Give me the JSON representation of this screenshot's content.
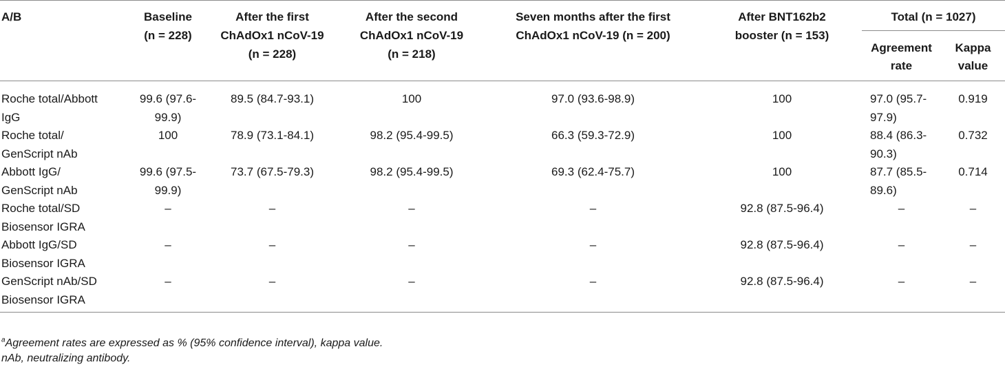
{
  "table": {
    "header": {
      "ab": "A/B",
      "baseline": {
        "line1": "Baseline",
        "line2": "(n = 228)"
      },
      "first": {
        "line1": "After the first",
        "line2": "ChAdOx1 nCoV-19",
        "line3": "(n = 228)"
      },
      "second": {
        "line1": "After the second",
        "line2": "ChAdOx1 nCoV-19",
        "line3": "(n = 218)"
      },
      "seven": {
        "line1": "Seven months after the first",
        "line2": "ChAdOx1 nCoV-19 (n = 200)"
      },
      "booster": {
        "line1": "After BNT162b2",
        "line2": "booster (n = 153)"
      },
      "total": "Total (n = 1027)",
      "agreement": {
        "line1": "Agreement",
        "line2": "rate"
      },
      "kappa": {
        "line1": "Kappa",
        "line2": "value"
      }
    },
    "rows": [
      {
        "label": [
          "Roche total/Abbott",
          "IgG"
        ],
        "baseline": [
          "99.6 (97.6-",
          "99.9)"
        ],
        "first": "89.5 (84.7-93.1)",
        "second": "100",
        "seven": "97.0 (93.6-98.9)",
        "booster": "100",
        "agreement": [
          "97.0 (95.7-",
          "97.9)"
        ],
        "kappa": "0.919"
      },
      {
        "label": [
          "Roche total/",
          "GenScript nAb"
        ],
        "baseline": [
          "100",
          ""
        ],
        "first": "78.9 (73.1-84.1)",
        "second": "98.2 (95.4-99.5)",
        "seven": "66.3 (59.3-72.9)",
        "booster": "100",
        "agreement": [
          "88.4 (86.3-",
          "90.3)"
        ],
        "kappa": "0.732"
      },
      {
        "label": [
          "Abbott IgG/",
          "GenScript nAb"
        ],
        "baseline": [
          "99.6 (97.5-",
          "99.9)"
        ],
        "first": "73.7 (67.5-79.3)",
        "second": "98.2 (95.4-99.5)",
        "seven": "69.3 (62.4-75.7)",
        "booster": "100",
        "agreement": [
          "87.7 (85.5-",
          "89.6)"
        ],
        "kappa": "0.714"
      },
      {
        "label": [
          "Roche total/SD",
          "Biosensor IGRA"
        ],
        "baseline": [
          "–",
          ""
        ],
        "first": "–",
        "second": "–",
        "seven": "–",
        "booster": "92.8 (87.5-96.4)",
        "agreement": [
          "–",
          ""
        ],
        "kappa": "–"
      },
      {
        "label": [
          "Abbott IgG/SD",
          "Biosensor IGRA"
        ],
        "baseline": [
          "–",
          ""
        ],
        "first": "–",
        "second": "–",
        "seven": "–",
        "booster": "92.8 (87.5-96.4)",
        "agreement": [
          "–",
          ""
        ],
        "kappa": "–"
      },
      {
        "label": [
          "GenScript nAb/SD",
          "Biosensor IGRA"
        ],
        "baseline": [
          "–",
          ""
        ],
        "first": "–",
        "second": "–",
        "seven": "–",
        "booster": "92.8 (87.5-96.4)",
        "agreement": [
          "–",
          ""
        ],
        "kappa": "–"
      }
    ]
  },
  "footnotes": {
    "marker": "a",
    "note1": "Agreement rates are expressed as % (95% confidence interval), kappa value.",
    "note2": "nAb, neutralizing antibody."
  }
}
